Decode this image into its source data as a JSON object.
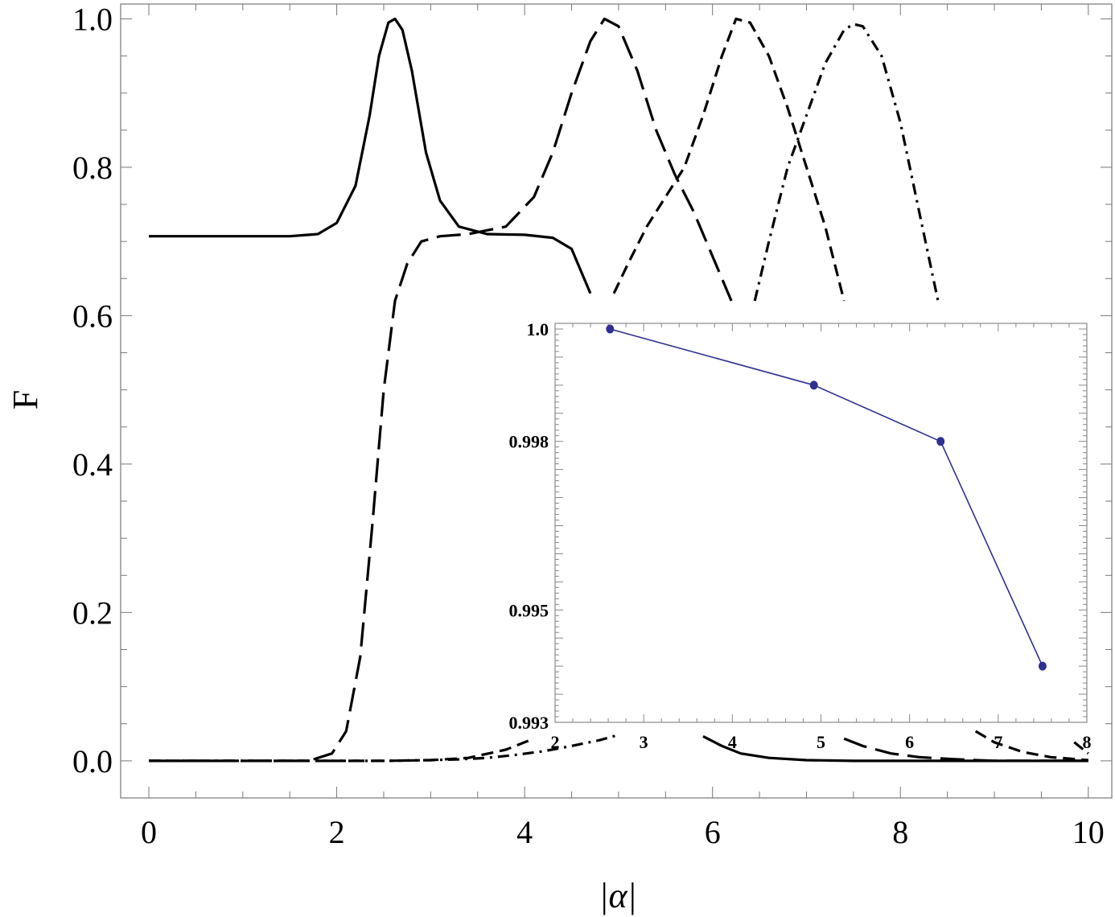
{
  "chart_data": [
    {
      "type": "line",
      "xlabel": "|α|",
      "ylabel": "F",
      "xlim": [
        -0.3,
        10.25
      ],
      "ylim": [
        -0.05,
        1.02
      ],
      "x_ticks": [
        0,
        2,
        4,
        6,
        8,
        10
      ],
      "x_tick_labels": [
        "0",
        "2",
        "4",
        "6",
        "8",
        "10"
      ],
      "y_ticks": [
        0.0,
        0.2,
        0.4,
        0.6,
        0.8,
        1.0
      ],
      "y_tick_labels": [
        "0.0",
        "0.2",
        "0.4",
        "0.6",
        "0.8",
        "1.0"
      ],
      "grid": false,
      "series": [
        {
          "style": "solid",
          "x": [
            0,
            1.5,
            1.8,
            2.0,
            2.2,
            2.35,
            2.45,
            2.55,
            2.62,
            2.7,
            2.8,
            2.95,
            3.1,
            3.3,
            3.6,
            4.0,
            4.3,
            4.5,
            4.7
          ],
          "y": [
            0.707,
            0.707,
            0.71,
            0.725,
            0.775,
            0.87,
            0.95,
            0.995,
            1.0,
            0.985,
            0.93,
            0.82,
            0.755,
            0.72,
            0.71,
            0.709,
            0.705,
            0.69,
            0.63
          ]
        },
        {
          "style": "solid",
          "x": [
            5.9,
            6.1,
            6.3,
            6.6,
            7.0,
            7.5,
            8.5,
            10.0
          ],
          "y": [
            0.033,
            0.02,
            0.01,
            0.004,
            0.001,
            0.0,
            0.0,
            0.0
          ]
        },
        {
          "style": "long-dash",
          "x": [
            0,
            1.7,
            1.95,
            2.1,
            2.25,
            2.38,
            2.5,
            2.62,
            2.75,
            2.9,
            3.1,
            3.4,
            3.8,
            4.1,
            4.3,
            4.5,
            4.7,
            4.85,
            5.0,
            5.2,
            5.4,
            5.6,
            5.8,
            6.0,
            6.2
          ],
          "y": [
            0.0,
            0.0,
            0.01,
            0.04,
            0.14,
            0.32,
            0.5,
            0.62,
            0.67,
            0.7,
            0.707,
            0.71,
            0.72,
            0.76,
            0.82,
            0.9,
            0.97,
            1.0,
            0.99,
            0.93,
            0.85,
            0.79,
            0.74,
            0.68,
            0.62
          ]
        },
        {
          "style": "long-dash",
          "x": [
            7.4,
            7.6,
            7.9,
            8.2,
            8.6,
            9.0,
            10.0
          ],
          "y": [
            0.03,
            0.02,
            0.01,
            0.005,
            0.002,
            0.0,
            0.0
          ]
        },
        {
          "style": "short-dash",
          "x": [
            0,
            2.5,
            3.0,
            3.4,
            3.8,
            4.0,
            4.1
          ],
          "y": [
            0.0,
            0.0,
            0.001,
            0.004,
            0.015,
            0.025,
            0.03
          ]
        },
        {
          "style": "short-dash",
          "x": [
            4.95,
            5.1,
            5.3,
            5.5,
            5.7,
            5.9,
            6.1,
            6.25,
            6.4,
            6.6,
            6.8,
            7.0,
            7.2,
            7.4
          ],
          "y": [
            0.63,
            0.67,
            0.72,
            0.76,
            0.8,
            0.87,
            0.95,
            1.0,
            0.995,
            0.95,
            0.88,
            0.8,
            0.72,
            0.62
          ]
        },
        {
          "style": "short-dash",
          "x": [
            8.8,
            9.0,
            9.3,
            9.6,
            10.0
          ],
          "y": [
            0.04,
            0.025,
            0.012,
            0.005,
            0.001
          ]
        },
        {
          "style": "dash-dot",
          "x": [
            0,
            2.0,
            2.5,
            3.0,
            3.3,
            3.6,
            3.9,
            4.2,
            4.5,
            4.8,
            5.0
          ],
          "y": [
            0.0,
            0.0,
            0.0,
            0.001,
            0.002,
            0.004,
            0.008,
            0.013,
            0.02,
            0.028,
            0.035
          ]
        },
        {
          "style": "dash-dot",
          "x": [
            6.45,
            6.6,
            6.8,
            7.0,
            7.2,
            7.4,
            7.5,
            7.6,
            7.8,
            8.0,
            8.2,
            8.4
          ],
          "y": [
            0.62,
            0.7,
            0.8,
            0.87,
            0.94,
            0.985,
            0.993,
            0.99,
            0.95,
            0.86,
            0.74,
            0.62
          ]
        },
        {
          "style": "dash-dot",
          "x": [
            9.85,
            9.95,
            10.0
          ],
          "y": [
            0.025,
            0.015,
            0.01
          ]
        }
      ]
    },
    {
      "type": "line",
      "role": "inset",
      "xlim": [
        2,
        8
      ],
      "ylim": [
        0.993,
        1.0001
      ],
      "x_ticks": [
        2,
        3,
        4,
        5,
        6,
        7,
        8
      ],
      "x_tick_labels": [
        "2",
        "3",
        "4",
        "5",
        "6",
        "7",
        "8"
      ],
      "y_ticks": [
        0.993,
        0.995,
        0.998,
        1.0
      ],
      "y_tick_labels": [
        "0.993",
        "0.995",
        "0.998",
        "1.0"
      ],
      "grid": false,
      "color": "#2e3191",
      "series": [
        {
          "x": [
            2.62,
            4.92,
            6.35,
            7.5
          ],
          "y": [
            1.0,
            0.999,
            0.998,
            0.994
          ]
        }
      ]
    }
  ]
}
